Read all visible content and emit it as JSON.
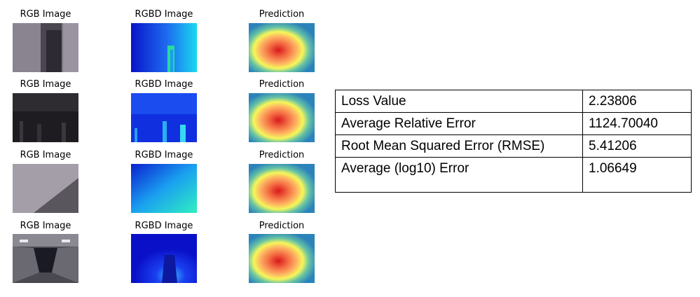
{
  "rows": [
    {
      "rgb_caption": "RGB Image",
      "rgbd_caption": "RGBD Image",
      "pred_caption": "Prediction"
    },
    {
      "rgb_caption": "RGB Image",
      "rgbd_caption": "RGBD Image",
      "pred_caption": "Prediction"
    },
    {
      "rgb_caption": "RGB Image",
      "rgbd_caption": "RGBD Image",
      "pred_caption": "Prediction"
    },
    {
      "rgb_caption": "RGB Image",
      "rgbd_caption": "RGBD Image",
      "pred_caption": "Prediction"
    }
  ],
  "metrics": [
    {
      "label": "Loss Value",
      "value": "2.23806"
    },
    {
      "label": "Average Relative Error",
      "value": "1124.70040"
    },
    {
      "label": "Root Mean Squared Error (RMSE)",
      "value": "5.41206"
    },
    {
      "label": "Average (log10) Error",
      "value": "1.06649"
    }
  ]
}
